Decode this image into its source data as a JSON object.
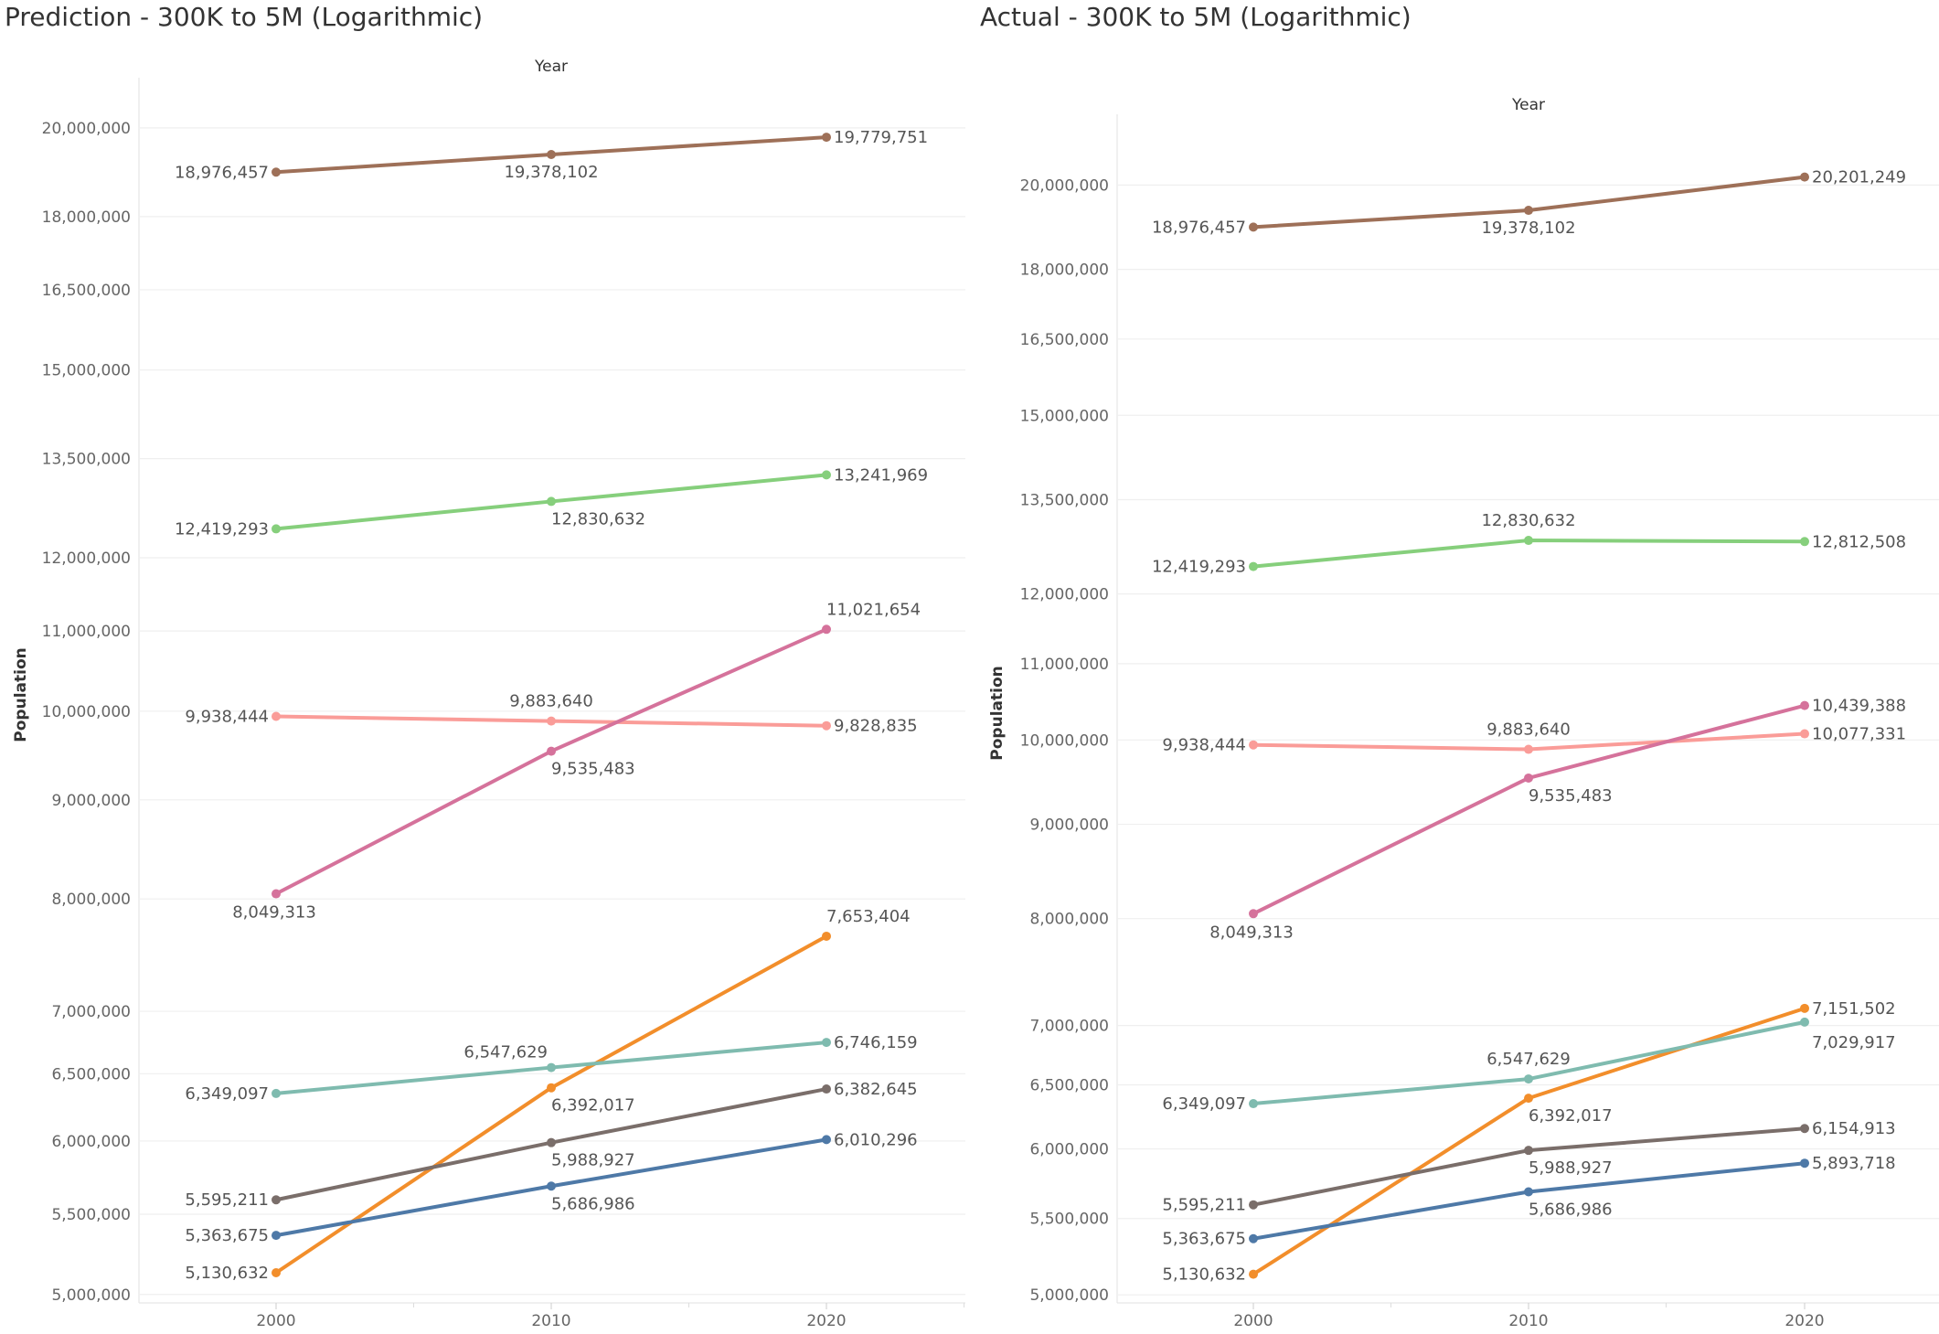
{
  "chart_data": [
    {
      "type": "line",
      "title": "Prediction - 300K to 5M (Logarithmic)",
      "column_header": "Year",
      "ylabel": "Population",
      "y_scale": "log",
      "ylim": [
        4950000,
        21000000
      ],
      "y_ticks": [
        5000000,
        5500000,
        6000000,
        6500000,
        7000000,
        8000000,
        9000000,
        10000000,
        11000000,
        12000000,
        13500000,
        15000000,
        16500000,
        18000000,
        20000000
      ],
      "y_tick_labels": [
        "5,000,000",
        "5,500,000",
        "6,000,000",
        "6,500,000",
        "7,000,000",
        "8,000,000",
        "9,000,000",
        "10,000,000",
        "11,000,000",
        "12,000,000",
        "13,500,000",
        "15,000,000",
        "16,500,000",
        "18,000,000",
        "20,000,000"
      ],
      "categories": [
        "2000",
        "2010",
        "2020"
      ],
      "grid": true,
      "legend": "none",
      "series": [
        {
          "color": "#9E7058",
          "values": [
            18976457,
            19378102,
            19779751
          ],
          "labels": [
            "18,976,457",
            "19,378,102",
            "19,779,751"
          ]
        },
        {
          "color": "#86CF7C",
          "values": [
            12419293,
            12830632,
            13241969
          ],
          "labels": [
            "12,419,293",
            "12,830,632",
            "13,241,969"
          ]
        },
        {
          "color": "#FA9C98",
          "values": [
            9938444,
            9883640,
            9828835
          ],
          "labels": [
            "9,938,444",
            "9,883,640",
            "9,828,835"
          ]
        },
        {
          "color": "#D5729B",
          "values": [
            8049313,
            9535483,
            11021654
          ],
          "labels": [
            "8,049,313",
            "9,535,483",
            "11,021,654"
          ]
        },
        {
          "color": "#F28E2B",
          "values": [
            5130632,
            6392017,
            7653404
          ],
          "labels": [
            "5,130,632",
            "6,392,017",
            "7,653,404"
          ]
        },
        {
          "color": "#7FBBAF",
          "values": [
            6349097,
            6547629,
            6746159
          ],
          "labels": [
            "6,349,097",
            "6,547,629",
            "6,746,159"
          ]
        },
        {
          "color": "#7A6E6A",
          "values": [
            5595211,
            5988927,
            6382645
          ],
          "labels": [
            "5,595,211",
            "5,988,927",
            "6,382,645"
          ]
        },
        {
          "color": "#4E79A7",
          "values": [
            5363675,
            5686986,
            6010296
          ],
          "labels": [
            "5,363,675",
            "5,686,986",
            "6,010,296"
          ]
        }
      ]
    },
    {
      "type": "line",
      "title": "Actual - 300K to 5M (Logarithmic)",
      "column_header": "Year",
      "ylabel": "Population",
      "y_scale": "log",
      "ylim": [
        4950000,
        21600000
      ],
      "y_ticks": [
        5000000,
        5500000,
        6000000,
        6500000,
        7000000,
        8000000,
        9000000,
        10000000,
        11000000,
        12000000,
        13500000,
        15000000,
        16500000,
        18000000,
        20000000
      ],
      "y_tick_labels": [
        "5,000,000",
        "5,500,000",
        "6,000,000",
        "6,500,000",
        "7,000,000",
        "8,000,000",
        "9,000,000",
        "10,000,000",
        "11,000,000",
        "12,000,000",
        "13,500,000",
        "15,000,000",
        "16,500,000",
        "18,000,000",
        "20,000,000"
      ],
      "categories": [
        "2000",
        "2010",
        "2020"
      ],
      "grid": true,
      "legend": "none",
      "series": [
        {
          "color": "#9E7058",
          "values": [
            18976457,
            19378102,
            20201249
          ],
          "labels": [
            "18,976,457",
            "19,378,102",
            "20,201,249"
          ]
        },
        {
          "color": "#86CF7C",
          "values": [
            12419293,
            12830632,
            12812508
          ],
          "labels": [
            "12,419,293",
            "12,830,632",
            "12,812,508"
          ]
        },
        {
          "color": "#FA9C98",
          "values": [
            9938444,
            9883640,
            10077331
          ],
          "labels": [
            "9,938,444",
            "9,883,640",
            "10,077,331"
          ]
        },
        {
          "color": "#D5729B",
          "values": [
            8049313,
            9535483,
            10439388
          ],
          "labels": [
            "8,049,313",
            "9,535,483",
            "10,439,388"
          ]
        },
        {
          "color": "#F28E2B",
          "values": [
            5130632,
            6392017,
            7151502
          ],
          "labels": [
            "5,130,632",
            "6,392,017",
            "7,151,502"
          ]
        },
        {
          "color": "#7FBBAF",
          "values": [
            6349097,
            6547629,
            7029917
          ],
          "labels": [
            "6,349,097",
            "6,547,629",
            "7,029,917"
          ]
        },
        {
          "color": "#7A6E6A",
          "values": [
            5595211,
            5988927,
            6154913
          ],
          "labels": [
            "5,595,211",
            "5,988,927",
            "6,154,913"
          ]
        },
        {
          "color": "#4E79A7",
          "values": [
            5363675,
            5686986,
            5893718
          ],
          "labels": [
            "5,363,675",
            "5,686,986",
            "5,893,718"
          ]
        }
      ]
    }
  ]
}
